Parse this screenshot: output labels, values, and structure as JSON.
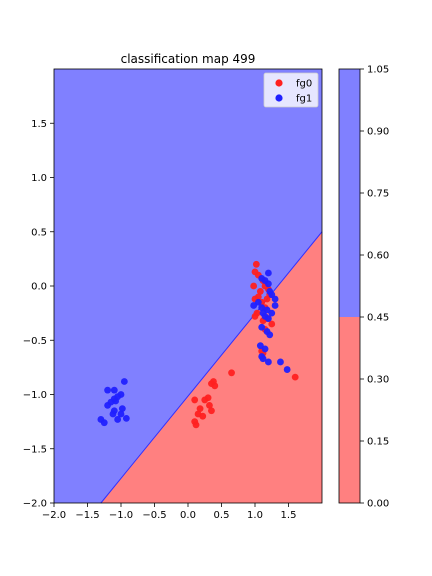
{
  "chart_data": {
    "type": "scatter",
    "title": "classification map 499",
    "xlim": [
      -2.0,
      2.0
    ],
    "ylim": [
      -2.0,
      2.0
    ],
    "x_ticks": [
      -2.0,
      -1.5,
      -1.0,
      -0.5,
      0.0,
      0.5,
      1.0,
      1.5
    ],
    "x_tick_labels": [
      "−2.0",
      "−1.5",
      "−1.0",
      "−0.5",
      "0.0",
      "0.5",
      "1.0",
      "1.5"
    ],
    "y_ticks": [
      1.5,
      1.0,
      0.5,
      0.0,
      -0.5,
      -1.0,
      -1.5,
      -2.0
    ],
    "y_tick_labels": [
      "1.5",
      "1.0",
      "0.5",
      "0.0",
      "−0.5",
      "−1.0",
      "−1.5",
      "−2.0"
    ],
    "legend_position": "top-right",
    "decision_boundary": {
      "points": [
        [
          -1.3,
          -2.0
        ],
        [
          2.0,
          0.5
        ]
      ]
    },
    "regions": [
      {
        "class": "fg1",
        "side": "upper-left",
        "color": "#8080ff"
      },
      {
        "class": "fg0",
        "side": "lower-right",
        "color": "#ff8080"
      }
    ],
    "series": [
      {
        "name": "fg0",
        "color": "#ff2020",
        "points": [
          [
            1.02,
            0.2
          ],
          [
            1.0,
            0.13
          ],
          [
            1.05,
            0.1
          ],
          [
            1.12,
            0.05
          ],
          [
            1.15,
            0.0
          ],
          [
            0.98,
            0.0
          ],
          [
            1.2,
            -0.03
          ],
          [
            1.08,
            -0.05
          ],
          [
            1.0,
            -0.12
          ],
          [
            1.05,
            -0.1
          ],
          [
            1.1,
            -0.15
          ],
          [
            1.15,
            -0.2
          ],
          [
            1.18,
            -0.12
          ],
          [
            1.22,
            -0.08
          ],
          [
            1.03,
            -0.25
          ],
          [
            1.0,
            -0.28
          ],
          [
            1.12,
            -0.32
          ],
          [
            1.25,
            -0.35
          ],
          [
            1.18,
            -0.3
          ],
          [
            1.15,
            -0.4
          ],
          [
            1.1,
            -0.6
          ],
          [
            1.12,
            -0.62
          ],
          [
            1.6,
            -0.84
          ],
          [
            0.65,
            -0.8
          ],
          [
            0.38,
            -0.88
          ],
          [
            0.35,
            -0.9
          ],
          [
            0.4,
            -0.92
          ],
          [
            0.1,
            -1.05
          ],
          [
            0.25,
            -1.05
          ],
          [
            0.3,
            -1.03
          ],
          [
            0.32,
            -1.1
          ],
          [
            0.35,
            -1.15
          ],
          [
            0.18,
            -1.13
          ],
          [
            0.15,
            -1.18
          ],
          [
            0.22,
            -1.2
          ],
          [
            0.1,
            -1.25
          ],
          [
            0.12,
            -1.28
          ]
        ]
      },
      {
        "name": "fg1",
        "color": "#2020ff",
        "points": [
          [
            1.2,
            0.12
          ],
          [
            1.1,
            0.07
          ],
          [
            1.15,
            0.05
          ],
          [
            1.2,
            0.02
          ],
          [
            1.22,
            -0.05
          ],
          [
            1.25,
            -0.08
          ],
          [
            1.3,
            -0.12
          ],
          [
            1.05,
            -0.15
          ],
          [
            0.98,
            -0.18
          ],
          [
            1.1,
            -0.2
          ],
          [
            1.18,
            -0.22
          ],
          [
            1.25,
            -0.25
          ],
          [
            1.3,
            -0.18
          ],
          [
            1.12,
            -0.25
          ],
          [
            1.15,
            -0.28
          ],
          [
            1.2,
            -0.3
          ],
          [
            1.1,
            -0.38
          ],
          [
            1.18,
            -0.42
          ],
          [
            1.22,
            -0.45
          ],
          [
            1.08,
            -0.55
          ],
          [
            1.15,
            -0.58
          ],
          [
            1.1,
            -0.65
          ],
          [
            1.12,
            -0.67
          ],
          [
            1.2,
            -0.7
          ],
          [
            1.38,
            -0.7
          ],
          [
            1.48,
            -0.77
          ],
          [
            -0.95,
            -0.88
          ],
          [
            -1.1,
            -0.96
          ],
          [
            -1.2,
            -0.96
          ],
          [
            -1.0,
            -1.0
          ],
          [
            -1.05,
            -1.02
          ],
          [
            -1.1,
            -1.04
          ],
          [
            -1.08,
            -1.06
          ],
          [
            -1.15,
            -1.07
          ],
          [
            -1.2,
            -1.1
          ],
          [
            -0.98,
            -1.13
          ],
          [
            -1.1,
            -1.15
          ],
          [
            -1.12,
            -1.18
          ],
          [
            -1.0,
            -1.18
          ],
          [
            -0.92,
            -1.22
          ],
          [
            -1.05,
            -1.23
          ],
          [
            -1.3,
            -1.23
          ],
          [
            -1.25,
            -1.26
          ]
        ]
      }
    ],
    "colorbar": {
      "ticks": [
        0.0,
        0.15,
        0.3,
        0.45,
        0.6,
        0.75,
        0.9,
        1.05
      ],
      "tick_labels": [
        "0.00",
        "0.15",
        "0.30",
        "0.45",
        "0.60",
        "0.75",
        "0.90",
        "1.05"
      ],
      "range": [
        0.0,
        1.05
      ],
      "bands": [
        {
          "from": 0.0,
          "to": 0.45,
          "color": "#ff8080"
        },
        {
          "from": 0.45,
          "to": 1.05,
          "color": "#8080ff"
        }
      ]
    }
  }
}
